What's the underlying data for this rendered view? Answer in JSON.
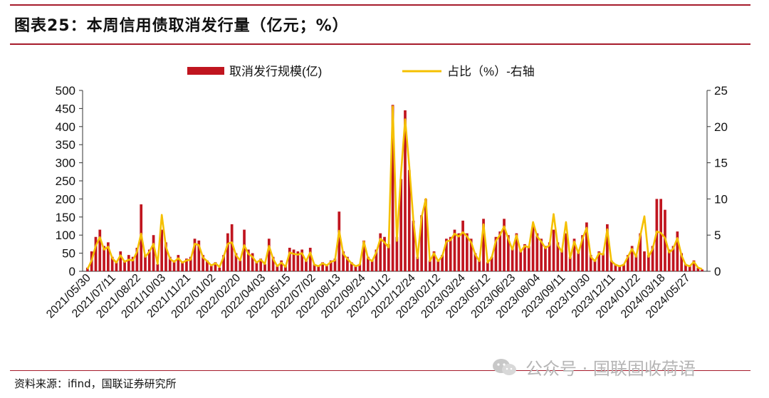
{
  "header": {
    "title": "图表25：本周信用债取消发行量（亿元；%）"
  },
  "footer": {
    "source": "资料来源：ifind，国联证券研究所"
  },
  "watermark": {
    "text": "公众号 · 国联固收荷语"
  },
  "colors": {
    "bar": "#c0151f",
    "line": "#f5c000",
    "rule": "#a61b2b"
  },
  "chart_data": {
    "type": "bar+line",
    "legend": {
      "placement": "top",
      "entries": [
        "取消发行规模(亿)",
        "占比（%）-右轴"
      ]
    },
    "left_axis": {
      "ylim": [
        0,
        500
      ],
      "ticks": [
        0,
        50,
        100,
        150,
        200,
        250,
        300,
        350,
        400,
        450,
        500
      ]
    },
    "right_axis": {
      "ylim": [
        0,
        25
      ],
      "ticks": [
        0,
        5,
        10,
        15,
        20,
        25
      ]
    },
    "grid": false,
    "x_tick_labels": [
      "2021/05/30",
      "2021/07/11",
      "2021/08/22",
      "2021/10/03",
      "2021/11/21",
      "2022/01/02",
      "2022/02/20",
      "2022/04/03",
      "2022/05/15",
      "2022/07/02",
      "2022/08/13",
      "2022/09/24",
      "2022/11/12",
      "2022/12/24",
      "2023/02/12",
      "2023/03/24",
      "2023/05/12",
      "2023/06/23",
      "2023/08/04",
      "2023/09/11",
      "2023/10/30",
      "2023/12/11",
      "2024/01/22",
      "2024/03/18",
      "2024/05/27"
    ],
    "series": [
      {
        "name": "取消发行规模(亿)",
        "axis": "left",
        "kind": "bar",
        "values": [
          10,
          55,
          95,
          115,
          70,
          80,
          40,
          25,
          55,
          30,
          45,
          40,
          65,
          185,
          45,
          60,
          100,
          20,
          115,
          80,
          40,
          30,
          45,
          25,
          35,
          40,
          90,
          85,
          45,
          30,
          15,
          25,
          10,
          45,
          105,
          130,
          50,
          30,
          115,
          60,
          50,
          25,
          35,
          20,
          90,
          40,
          15,
          30,
          15,
          65,
          60,
          55,
          60,
          30,
          65,
          20,
          15,
          25,
          15,
          30,
          35,
          165,
          55,
          40,
          25,
          15,
          20,
          85,
          40,
          30,
          60,
          105,
          95,
          75,
          460,
          95,
          255,
          445,
          280,
          140,
          40,
          155,
          200,
          30,
          55,
          30,
          45,
          90,
          95,
          115,
          105,
          140,
          105,
          90,
          50,
          30,
          145,
          25,
          40,
          95,
          110,
          145,
          100,
          65,
          105,
          60,
          75,
          70,
          125,
          105,
          90,
          70,
          80,
          115,
          80,
          60,
          105,
          40,
          90,
          55,
          100,
          135,
          45,
          30,
          55,
          50,
          130,
          30,
          20,
          15,
          20,
          45,
          70,
          45,
          105,
          55,
          45,
          70,
          200,
          200,
          170,
          60,
          70,
          110,
          50,
          20,
          15,
          30,
          10,
          5
        ]
      },
      {
        "name": "占比（%）-右轴",
        "axis": "right",
        "kind": "line",
        "values": [
          0.3,
          1.5,
          3.5,
          4.7,
          3.0,
          3.4,
          1.8,
          1.2,
          2.2,
          1.3,
          1.6,
          1.5,
          2.7,
          5.2,
          2.0,
          2.7,
          3.8,
          1.0,
          7.8,
          3.4,
          1.7,
          1.3,
          1.8,
          1.2,
          1.5,
          1.6,
          3.8,
          3.6,
          1.9,
          1.4,
          0.8,
          1.1,
          0.6,
          2.0,
          3.8,
          4.0,
          2.2,
          1.5,
          3.6,
          2.4,
          2.0,
          1.2,
          1.6,
          1.0,
          3.5,
          1.7,
          0.7,
          1.2,
          0.6,
          2.6,
          2.4,
          2.3,
          2.5,
          1.4,
          2.6,
          0.9,
          0.7,
          1.1,
          0.8,
          1.3,
          1.5,
          5.6,
          2.4,
          1.7,
          1.1,
          0.7,
          0.9,
          4.1,
          1.8,
          1.4,
          2.6,
          4.5,
          4.0,
          3.3,
          22.8,
          4.2,
          13.5,
          21.0,
          14.5,
          7.0,
          1.8,
          7.5,
          10.0,
          1.4,
          2.5,
          1.4,
          2.1,
          4.1,
          4.3,
          5.2,
          4.8,
          5.4,
          4.8,
          4.0,
          2.3,
          1.4,
          6.5,
          1.2,
          1.9,
          4.2,
          5.0,
          6.2,
          4.5,
          3.0,
          5.0,
          2.7,
          3.5,
          3.3,
          6.8,
          4.8,
          4.1,
          3.2,
          3.6,
          7.9,
          3.6,
          2.7,
          6.8,
          1.8,
          4.1,
          2.5,
          4.5,
          6.0,
          2.0,
          1.4,
          2.5,
          2.3,
          5.8,
          1.4,
          0.9,
          0.7,
          0.9,
          2.0,
          3.1,
          2.0,
          4.9,
          7.6,
          2.0,
          3.1,
          5.5,
          5.3,
          4.6,
          2.6,
          3.1,
          4.6,
          2.2,
          0.9,
          0.7,
          1.3,
          0.5,
          0.3
        ]
      }
    ]
  }
}
